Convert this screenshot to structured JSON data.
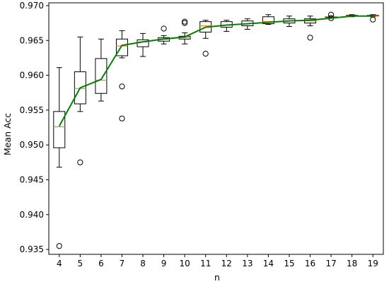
{
  "chart_data": {
    "type": "box",
    "title": "",
    "xlabel": "n",
    "ylabel": "Mean Acc",
    "x": [
      4,
      5,
      6,
      7,
      8,
      9,
      10,
      11,
      12,
      13,
      14,
      15,
      16,
      17,
      18,
      19
    ],
    "ylim": [
      0.9343,
      0.9704
    ],
    "yticks": [
      0.935,
      0.94,
      0.945,
      0.95,
      0.955,
      0.96,
      0.965,
      0.97
    ],
    "ytick_labels": [
      "0.935",
      "0.940",
      "0.945",
      "0.950",
      "0.955",
      "0.960",
      "0.965",
      "0.970"
    ],
    "grid": false,
    "mean_line": {
      "color": "#008000",
      "values": [
        0.9527,
        0.9582,
        0.9594,
        0.9643,
        0.9648,
        0.9652,
        0.9655,
        0.9669,
        0.9672,
        0.9674,
        0.9676,
        0.9678,
        0.9679,
        0.9682,
        0.9685,
        0.9685
      ]
    },
    "median_color": "#ff7f0e",
    "boxes": [
      {
        "x": 4,
        "whisker_low": 0.9468,
        "q1": 0.9496,
        "median": 0.9526,
        "q3": 0.9548,
        "whisker_high": 0.9611,
        "outliers": [
          0.9355
        ]
      },
      {
        "x": 5,
        "whisker_low": 0.9548,
        "q1": 0.9559,
        "median": 0.9581,
        "q3": 0.9605,
        "whisker_high": 0.9655,
        "outliers": [
          0.9475
        ]
      },
      {
        "x": 6,
        "whisker_low": 0.9563,
        "q1": 0.9574,
        "median": 0.9593,
        "q3": 0.9624,
        "whisker_high": 0.9652,
        "outliers": []
      },
      {
        "x": 7,
        "whisker_low": 0.9625,
        "q1": 0.9628,
        "median": 0.9642,
        "q3": 0.9652,
        "whisker_high": 0.9664,
        "outliers": [
          0.9584,
          0.9538
        ]
      },
      {
        "x": 8,
        "whisker_low": 0.9627,
        "q1": 0.9641,
        "median": 0.9648,
        "q3": 0.9651,
        "whisker_high": 0.966,
        "outliers": []
      },
      {
        "x": 9,
        "whisker_low": 0.9645,
        "q1": 0.9649,
        "median": 0.9652,
        "q3": 0.9654,
        "whisker_high": 0.9657,
        "outliers": [
          0.9667
        ]
      },
      {
        "x": 10,
        "whisker_low": 0.9645,
        "q1": 0.9652,
        "median": 0.9654,
        "q3": 0.9656,
        "whisker_high": 0.9661,
        "outliers": [
          0.9675,
          0.9677
        ]
      },
      {
        "x": 11,
        "whisker_low": 0.9653,
        "q1": 0.9662,
        "median": 0.9671,
        "q3": 0.9677,
        "whisker_high": 0.9679,
        "outliers": [
          0.9631
        ]
      },
      {
        "x": 12,
        "whisker_low": 0.9663,
        "q1": 0.9669,
        "median": 0.9672,
        "q3": 0.9677,
        "whisker_high": 0.9679,
        "outliers": []
      },
      {
        "x": 13,
        "whisker_low": 0.9666,
        "q1": 0.9671,
        "median": 0.9674,
        "q3": 0.9678,
        "whisker_high": 0.9681,
        "outliers": []
      },
      {
        "x": 14,
        "whisker_low": 0.9673,
        "q1": 0.9674,
        "median": 0.9677,
        "q3": 0.9684,
        "whisker_high": 0.9687,
        "outliers": []
      },
      {
        "x": 15,
        "whisker_low": 0.967,
        "q1": 0.9675,
        "median": 0.9678,
        "q3": 0.9681,
        "whisker_high": 0.9685,
        "outliers": []
      },
      {
        "x": 16,
        "whisker_low": 0.9671,
        "q1": 0.9675,
        "median": 0.9678,
        "q3": 0.9681,
        "whisker_high": 0.9685,
        "outliers": [
          0.9654
        ]
      },
      {
        "x": 17,
        "whisker_low": 0.9682,
        "q1": 0.9683,
        "median": 0.9684,
        "q3": 0.9684,
        "whisker_high": 0.9685,
        "outliers": [
          0.9687,
          0.9682
        ]
      },
      {
        "x": 18,
        "whisker_low": 0.9684,
        "q1": 0.9685,
        "median": 0.9685,
        "q3": 0.9686,
        "whisker_high": 0.9687,
        "outliers": []
      },
      {
        "x": 19,
        "whisker_low": 0.9684,
        "q1": 0.9685,
        "median": 0.9685,
        "q3": 0.9686,
        "whisker_high": 0.9687,
        "outliers": [
          0.968
        ]
      }
    ]
  }
}
